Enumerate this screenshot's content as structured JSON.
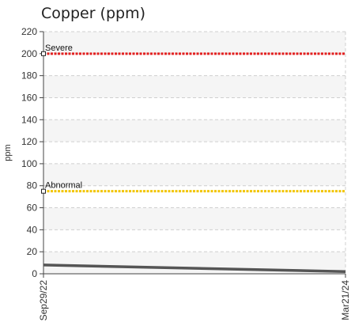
{
  "chart_data": {
    "type": "line",
    "title": "Copper (ppm)",
    "ylabel": "ppm",
    "xlabel": "",
    "ylim": [
      0,
      220
    ],
    "y_ticks": [
      0,
      20,
      40,
      60,
      80,
      100,
      120,
      140,
      160,
      180,
      200,
      220
    ],
    "grid": true,
    "x": [
      "Sep29/22",
      "Mar21/24"
    ],
    "series": [
      {
        "values": [
          8,
          2
        ],
        "color": "#555555"
      }
    ],
    "thresholds": [
      {
        "name": "Severe",
        "value": 200,
        "color": "#e32020"
      },
      {
        "name": "Abnormal",
        "value": 75,
        "color": "#f2c500"
      }
    ]
  }
}
